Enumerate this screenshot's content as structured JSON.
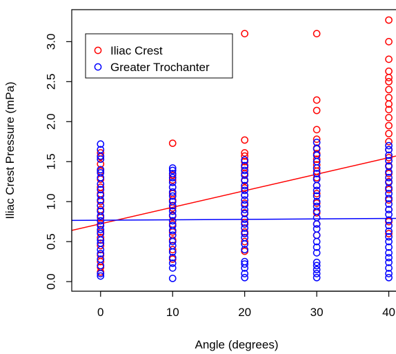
{
  "chart_data": {
    "type": "scatter",
    "title": "",
    "xlabel": "Angle (degrees)",
    "ylabel": "Iliac Crest Pressure (mPa)",
    "xlim": [
      -4,
      41
    ],
    "ylim": [
      -0.12,
      3.4
    ],
    "x_ticks": [
      0,
      10,
      20,
      30,
      40
    ],
    "y_ticks": [
      0.0,
      0.5,
      1.0,
      1.5,
      2.0,
      2.5,
      3.0
    ],
    "y_tick_labels": [
      "0.0",
      "0.5",
      "1.0",
      "1.5",
      "2.0",
      "2.5",
      "3.0"
    ],
    "grid": false,
    "legend_position": "top-left",
    "series": [
      {
        "name": "Iliac Crest",
        "color": "#ff0000",
        "marker": "open-circle",
        "points": [
          {
            "x": 0,
            "y": 0.12
          },
          {
            "x": 0,
            "y": 0.18
          },
          {
            "x": 0,
            "y": 0.25
          },
          {
            "x": 0,
            "y": 0.33
          },
          {
            "x": 0,
            "y": 0.45
          },
          {
            "x": 0,
            "y": 0.55
          },
          {
            "x": 0,
            "y": 0.62
          },
          {
            "x": 0,
            "y": 0.72
          },
          {
            "x": 0,
            "y": 0.8
          },
          {
            "x": 0,
            "y": 0.9
          },
          {
            "x": 0,
            "y": 1.0
          },
          {
            "x": 0,
            "y": 1.1
          },
          {
            "x": 0,
            "y": 1.18
          },
          {
            "x": 0,
            "y": 1.28
          },
          {
            "x": 0,
            "y": 1.38
          },
          {
            "x": 0,
            "y": 1.47
          },
          {
            "x": 0,
            "y": 1.56
          },
          {
            "x": 0,
            "y": 1.61
          },
          {
            "x": 10,
            "y": 0.28
          },
          {
            "x": 10,
            "y": 0.4
          },
          {
            "x": 10,
            "y": 0.52
          },
          {
            "x": 10,
            "y": 0.62
          },
          {
            "x": 10,
            "y": 0.72
          },
          {
            "x": 10,
            "y": 0.82
          },
          {
            "x": 10,
            "y": 0.92
          },
          {
            "x": 10,
            "y": 1.02
          },
          {
            "x": 10,
            "y": 1.1
          },
          {
            "x": 10,
            "y": 1.18
          },
          {
            "x": 10,
            "y": 1.27
          },
          {
            "x": 10,
            "y": 1.33
          },
          {
            "x": 10,
            "y": 1.73
          },
          {
            "x": 20,
            "y": 0.38
          },
          {
            "x": 20,
            "y": 0.5
          },
          {
            "x": 20,
            "y": 0.62
          },
          {
            "x": 20,
            "y": 0.74
          },
          {
            "x": 20,
            "y": 0.86
          },
          {
            "x": 20,
            "y": 0.98
          },
          {
            "x": 20,
            "y": 1.08
          },
          {
            "x": 20,
            "y": 1.17
          },
          {
            "x": 20,
            "y": 1.26
          },
          {
            "x": 20,
            "y": 1.35
          },
          {
            "x": 20,
            "y": 1.43
          },
          {
            "x": 20,
            "y": 1.5
          },
          {
            "x": 20,
            "y": 1.57
          },
          {
            "x": 20,
            "y": 1.61
          },
          {
            "x": 20,
            "y": 1.77
          },
          {
            "x": 20,
            "y": 3.1
          },
          {
            "x": 30,
            "y": 0.58
          },
          {
            "x": 30,
            "y": 0.72
          },
          {
            "x": 30,
            "y": 0.86
          },
          {
            "x": 30,
            "y": 0.98
          },
          {
            "x": 30,
            "y": 1.1
          },
          {
            "x": 30,
            "y": 1.2
          },
          {
            "x": 30,
            "y": 1.3
          },
          {
            "x": 30,
            "y": 1.38
          },
          {
            "x": 30,
            "y": 1.46
          },
          {
            "x": 30,
            "y": 1.53
          },
          {
            "x": 30,
            "y": 1.6
          },
          {
            "x": 30,
            "y": 1.67
          },
          {
            "x": 30,
            "y": 1.78
          },
          {
            "x": 30,
            "y": 1.9
          },
          {
            "x": 30,
            "y": 2.14
          },
          {
            "x": 30,
            "y": 2.27
          },
          {
            "x": 30,
            "y": 3.1
          },
          {
            "x": 40,
            "y": 0.6
          },
          {
            "x": 40,
            "y": 0.75
          },
          {
            "x": 40,
            "y": 0.9
          },
          {
            "x": 40,
            "y": 1.02
          },
          {
            "x": 40,
            "y": 1.15
          },
          {
            "x": 40,
            "y": 1.25
          },
          {
            "x": 40,
            "y": 1.35
          },
          {
            "x": 40,
            "y": 1.45
          },
          {
            "x": 40,
            "y": 1.55
          },
          {
            "x": 40,
            "y": 1.65
          },
          {
            "x": 40,
            "y": 1.75
          },
          {
            "x": 40,
            "y": 1.85
          },
          {
            "x": 40,
            "y": 1.95
          },
          {
            "x": 40,
            "y": 2.05
          },
          {
            "x": 40,
            "y": 2.15
          },
          {
            "x": 40,
            "y": 2.22
          },
          {
            "x": 40,
            "y": 2.3
          },
          {
            "x": 40,
            "y": 2.4
          },
          {
            "x": 40,
            "y": 2.5
          },
          {
            "x": 40,
            "y": 2.55
          },
          {
            "x": 40,
            "y": 2.63
          },
          {
            "x": 40,
            "y": 2.78
          },
          {
            "x": 40,
            "y": 3.0
          },
          {
            "x": 40,
            "y": 3.27
          }
        ],
        "fit": {
          "x": [
            -4,
            41
          ],
          "y": [
            0.64,
            1.57
          ]
        }
      },
      {
        "name": "Greater Trochanter",
        "color": "#0000ff",
        "marker": "open-circle",
        "points": [
          {
            "x": 0,
            "y": 0.07
          },
          {
            "x": 0,
            "y": 0.1
          },
          {
            "x": 0,
            "y": 0.2
          },
          {
            "x": 0,
            "y": 0.28
          },
          {
            "x": 0,
            "y": 0.35
          },
          {
            "x": 0,
            "y": 0.4
          },
          {
            "x": 0,
            "y": 0.48
          },
          {
            "x": 0,
            "y": 0.52
          },
          {
            "x": 0,
            "y": 0.6
          },
          {
            "x": 0,
            "y": 0.65
          },
          {
            "x": 0,
            "y": 0.7
          },
          {
            "x": 0,
            "y": 0.76
          },
          {
            "x": 0,
            "y": 0.82
          },
          {
            "x": 0,
            "y": 0.88
          },
          {
            "x": 0,
            "y": 0.95
          },
          {
            "x": 0,
            "y": 1.02
          },
          {
            "x": 0,
            "y": 1.08
          },
          {
            "x": 0,
            "y": 1.15
          },
          {
            "x": 0,
            "y": 1.22
          },
          {
            "x": 0,
            "y": 1.3
          },
          {
            "x": 0,
            "y": 1.36
          },
          {
            "x": 0,
            "y": 1.4
          },
          {
            "x": 0,
            "y": 1.53
          },
          {
            "x": 0,
            "y": 1.57
          },
          {
            "x": 0,
            "y": 1.65
          },
          {
            "x": 0,
            "y": 1.72
          },
          {
            "x": 10,
            "y": 0.04
          },
          {
            "x": 10,
            "y": 0.17
          },
          {
            "x": 10,
            "y": 0.23
          },
          {
            "x": 10,
            "y": 0.3
          },
          {
            "x": 10,
            "y": 0.37
          },
          {
            "x": 10,
            "y": 0.45
          },
          {
            "x": 10,
            "y": 0.5
          },
          {
            "x": 10,
            "y": 0.58
          },
          {
            "x": 10,
            "y": 0.64
          },
          {
            "x": 10,
            "y": 0.7
          },
          {
            "x": 10,
            "y": 0.76
          },
          {
            "x": 10,
            "y": 0.83
          },
          {
            "x": 10,
            "y": 0.88
          },
          {
            "x": 10,
            "y": 0.95
          },
          {
            "x": 10,
            "y": 1.0
          },
          {
            "x": 10,
            "y": 1.07
          },
          {
            "x": 10,
            "y": 1.12
          },
          {
            "x": 10,
            "y": 1.18
          },
          {
            "x": 10,
            "y": 1.24
          },
          {
            "x": 10,
            "y": 1.3
          },
          {
            "x": 10,
            "y": 1.35
          },
          {
            "x": 10,
            "y": 1.39
          },
          {
            "x": 10,
            "y": 1.42
          },
          {
            "x": 20,
            "y": 0.05
          },
          {
            "x": 20,
            "y": 0.1
          },
          {
            "x": 20,
            "y": 0.17
          },
          {
            "x": 20,
            "y": 0.22
          },
          {
            "x": 20,
            "y": 0.25
          },
          {
            "x": 20,
            "y": 0.4
          },
          {
            "x": 20,
            "y": 0.47
          },
          {
            "x": 20,
            "y": 0.55
          },
          {
            "x": 20,
            "y": 0.6
          },
          {
            "x": 20,
            "y": 0.67
          },
          {
            "x": 20,
            "y": 0.72
          },
          {
            "x": 20,
            "y": 0.78
          },
          {
            "x": 20,
            "y": 0.85
          },
          {
            "x": 20,
            "y": 0.9
          },
          {
            "x": 20,
            "y": 0.96
          },
          {
            "x": 20,
            "y": 1.02
          },
          {
            "x": 20,
            "y": 1.08
          },
          {
            "x": 20,
            "y": 1.14
          },
          {
            "x": 20,
            "y": 1.2
          },
          {
            "x": 20,
            "y": 1.27
          },
          {
            "x": 20,
            "y": 1.33
          },
          {
            "x": 20,
            "y": 1.39
          },
          {
            "x": 20,
            "y": 1.45
          },
          {
            "x": 20,
            "y": 1.52
          },
          {
            "x": 30,
            "y": 0.05
          },
          {
            "x": 30,
            "y": 0.1
          },
          {
            "x": 30,
            "y": 0.15
          },
          {
            "x": 30,
            "y": 0.2
          },
          {
            "x": 30,
            "y": 0.24
          },
          {
            "x": 30,
            "y": 0.36
          },
          {
            "x": 30,
            "y": 0.43
          },
          {
            "x": 30,
            "y": 0.5
          },
          {
            "x": 30,
            "y": 0.58
          },
          {
            "x": 30,
            "y": 0.66
          },
          {
            "x": 30,
            "y": 0.72
          },
          {
            "x": 30,
            "y": 0.8
          },
          {
            "x": 30,
            "y": 0.88
          },
          {
            "x": 30,
            "y": 0.94
          },
          {
            "x": 30,
            "y": 1.0
          },
          {
            "x": 30,
            "y": 1.07
          },
          {
            "x": 30,
            "y": 1.14
          },
          {
            "x": 30,
            "y": 1.2
          },
          {
            "x": 30,
            "y": 1.28
          },
          {
            "x": 30,
            "y": 1.35
          },
          {
            "x": 30,
            "y": 1.42
          },
          {
            "x": 30,
            "y": 1.5
          },
          {
            "x": 30,
            "y": 1.58
          },
          {
            "x": 30,
            "y": 1.66
          },
          {
            "x": 30,
            "y": 1.74
          },
          {
            "x": 40,
            "y": 0.05
          },
          {
            "x": 40,
            "y": 0.1
          },
          {
            "x": 40,
            "y": 0.17
          },
          {
            "x": 40,
            "y": 0.24
          },
          {
            "x": 40,
            "y": 0.3
          },
          {
            "x": 40,
            "y": 0.36
          },
          {
            "x": 40,
            "y": 0.43
          },
          {
            "x": 40,
            "y": 0.5
          },
          {
            "x": 40,
            "y": 0.56
          },
          {
            "x": 40,
            "y": 0.63
          },
          {
            "x": 40,
            "y": 0.7
          },
          {
            "x": 40,
            "y": 0.77
          },
          {
            "x": 40,
            "y": 0.84
          },
          {
            "x": 40,
            "y": 0.9
          },
          {
            "x": 40,
            "y": 0.97
          },
          {
            "x": 40,
            "y": 1.04
          },
          {
            "x": 40,
            "y": 1.1
          },
          {
            "x": 40,
            "y": 1.17
          },
          {
            "x": 40,
            "y": 1.24
          },
          {
            "x": 40,
            "y": 1.3
          },
          {
            "x": 40,
            "y": 1.37
          },
          {
            "x": 40,
            "y": 1.44
          },
          {
            "x": 40,
            "y": 1.51
          },
          {
            "x": 40,
            "y": 1.58
          },
          {
            "x": 40,
            "y": 1.65
          },
          {
            "x": 40,
            "y": 1.7
          }
        ],
        "fit": {
          "x": [
            -4,
            41
          ],
          "y": [
            0.765,
            0.79
          ]
        }
      }
    ]
  }
}
